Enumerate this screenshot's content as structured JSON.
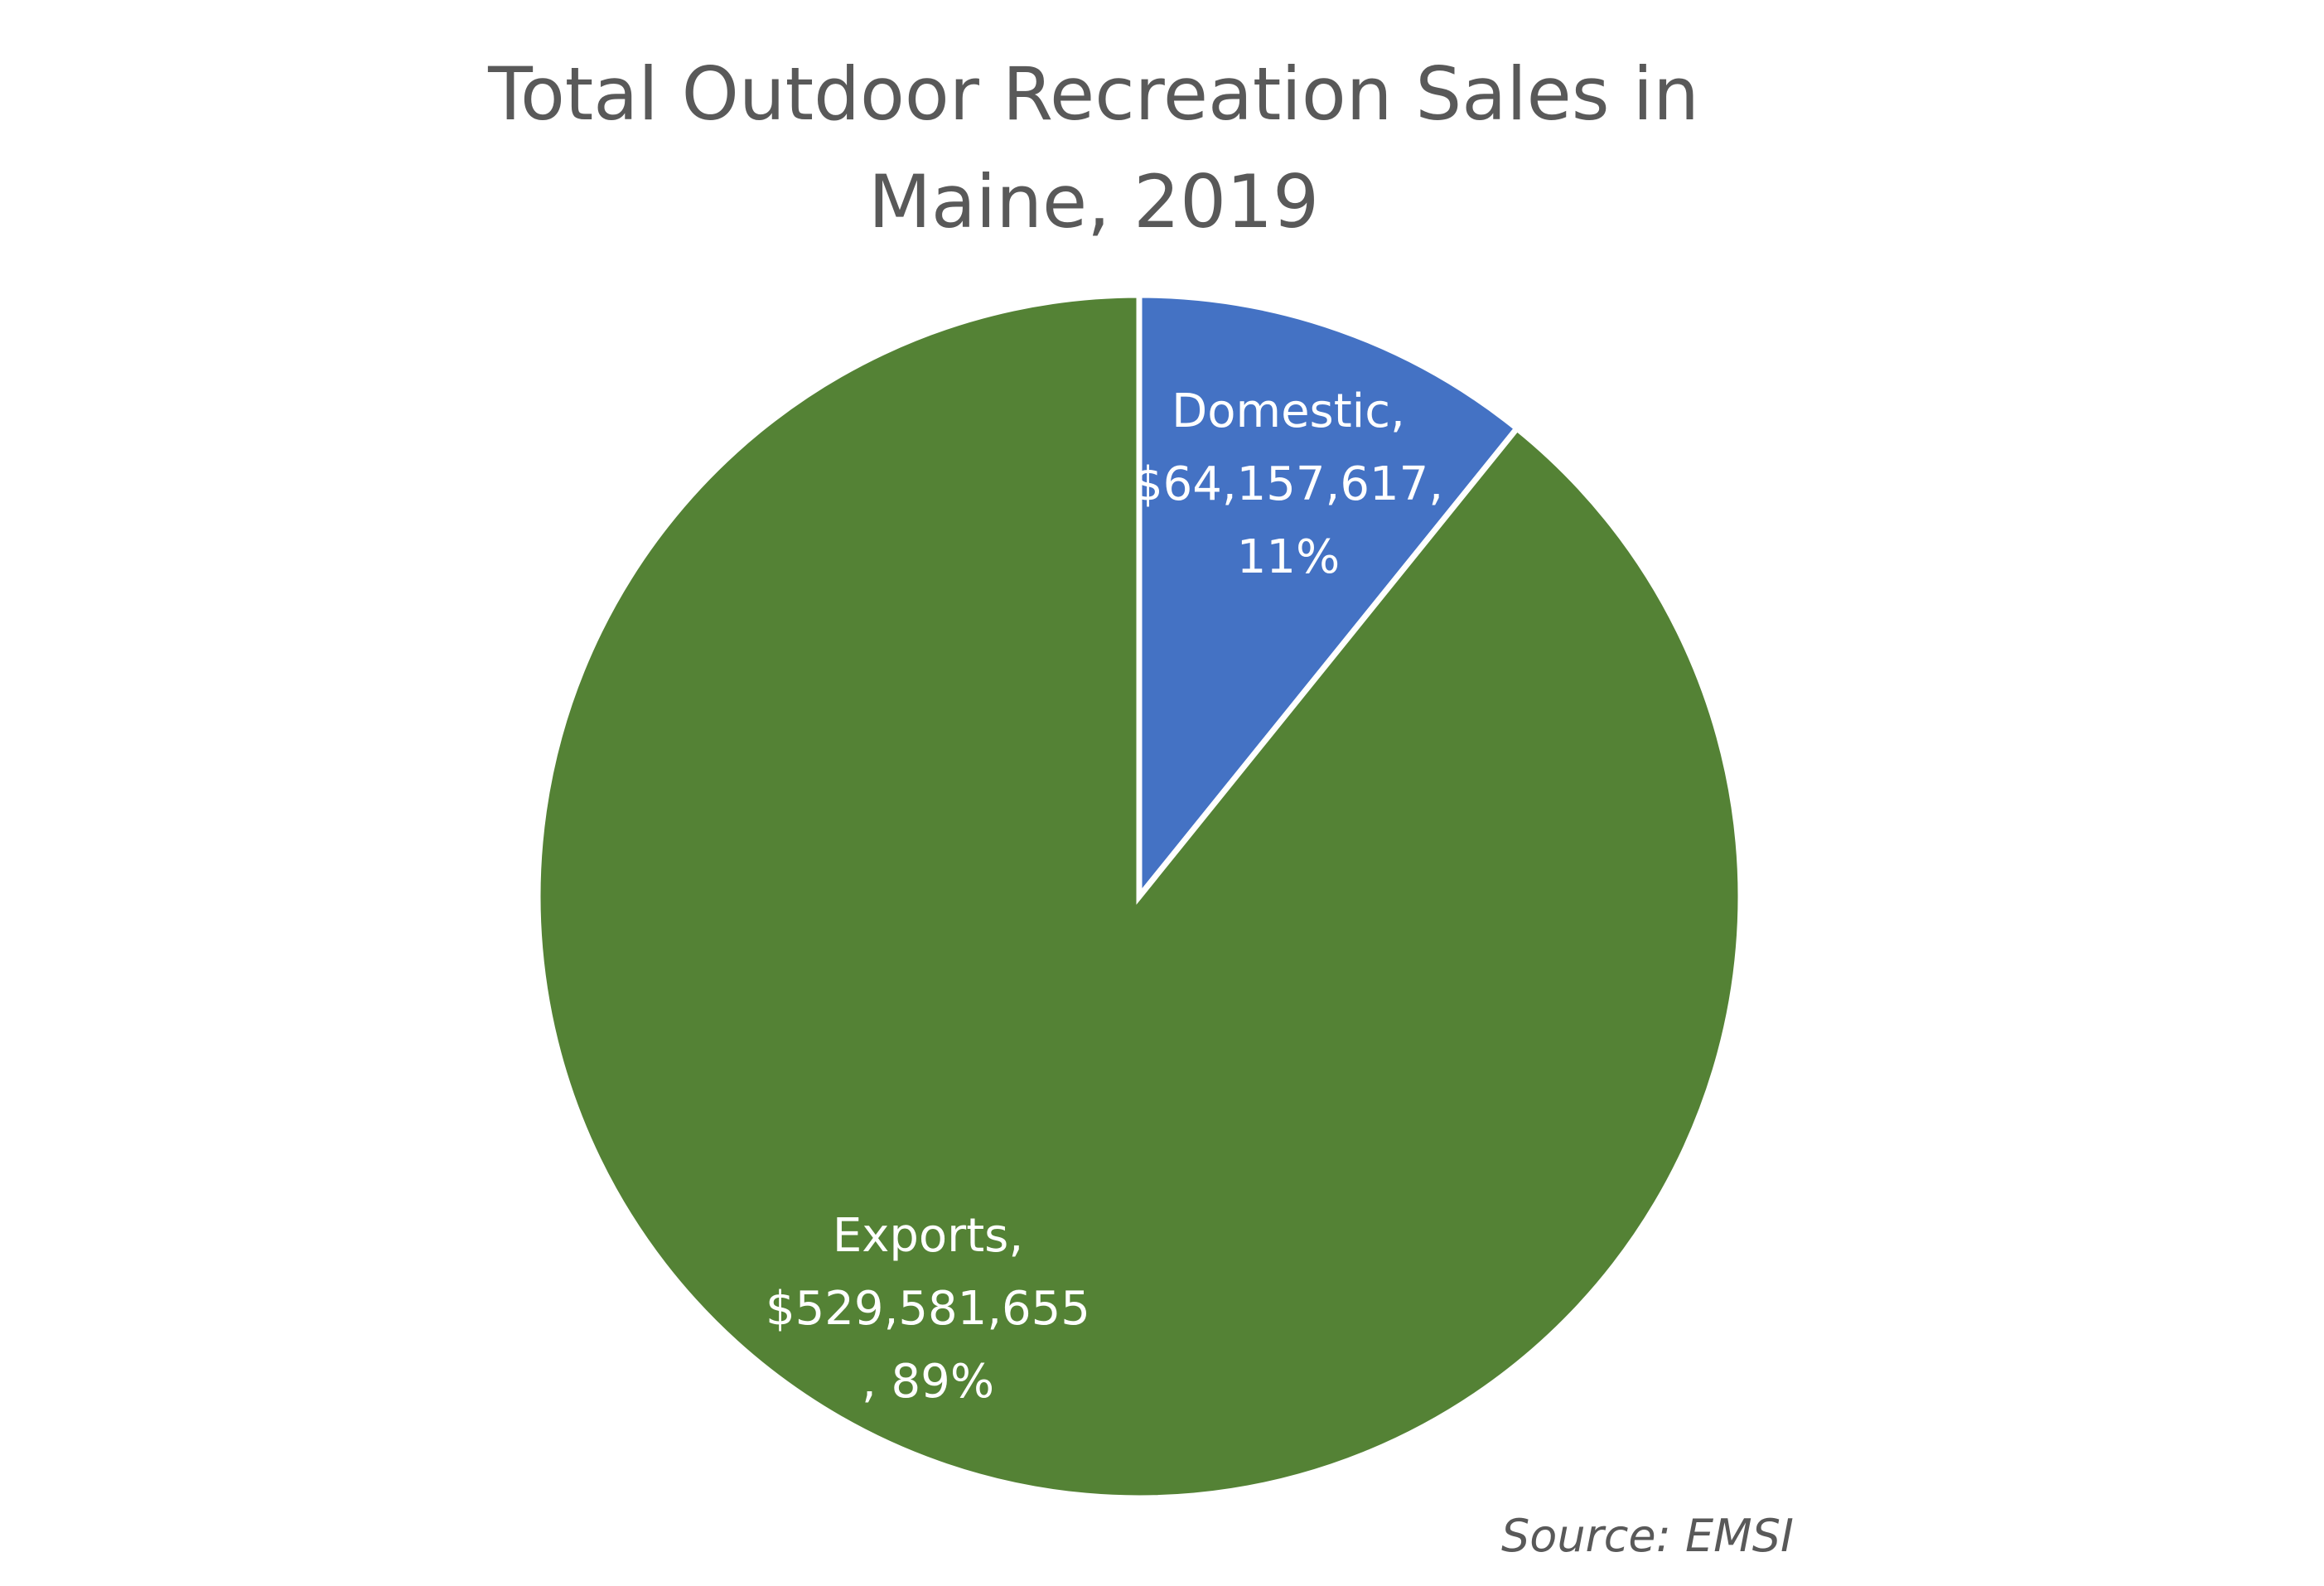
{
  "chart_data": {
    "type": "pie",
    "title_lines": [
      "Total Outdoor Recreation Sales in",
      "Maine, 2019"
    ],
    "slices": [
      {
        "name": "Domestic",
        "value": 64157617,
        "percent": 11,
        "color": "#4472C4",
        "label_lines": [
          "Domestic,",
          "$64,157,617,",
          "11%"
        ]
      },
      {
        "name": "Exports",
        "value": 529581655,
        "percent": 89,
        "color": "#548235",
        "label_lines": [
          "Exports,",
          "$529,581,655",
          ", 89%"
        ]
      }
    ],
    "slice_border_color": "#ffffff",
    "legend": "none",
    "source_note": "Source: EMSI"
  }
}
